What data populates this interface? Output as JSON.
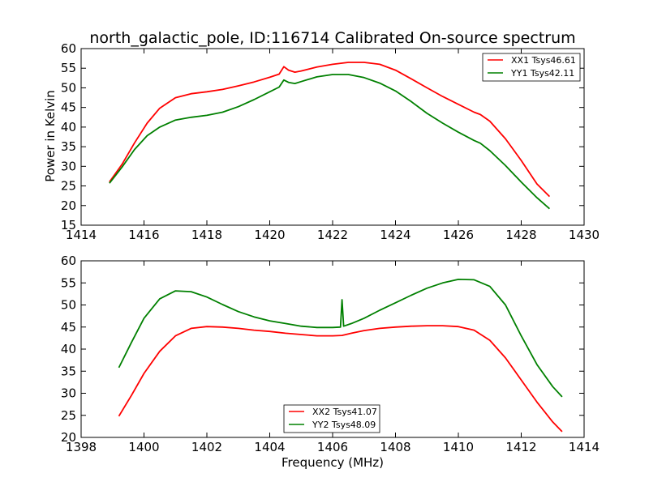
{
  "chart_data": [
    {
      "type": "line",
      "title": "north_galactic_pole, ID:116714 Calibrated On-source spectrum",
      "xlabel": "",
      "ylabel": "Power in Kelvin",
      "xlim": [
        1414,
        1430
      ],
      "ylim": [
        15,
        60
      ],
      "xticks": [
        1414,
        1416,
        1418,
        1420,
        1422,
        1424,
        1426,
        1428,
        1430
      ],
      "yticks": [
        15,
        20,
        25,
        30,
        35,
        40,
        45,
        50,
        55,
        60
      ],
      "grid": false,
      "legend": "top-right",
      "series": [
        {
          "name": "XX1 Tsys46.61",
          "color": "#ff0000",
          "x": [
            1414.9,
            1415.3,
            1415.7,
            1416.1,
            1416.5,
            1417.0,
            1417.5,
            1418.0,
            1418.5,
            1419.0,
            1419.5,
            1420.0,
            1420.3,
            1420.45,
            1420.6,
            1420.8,
            1421.0,
            1421.5,
            1422.0,
            1422.5,
            1423.0,
            1423.5,
            1424.0,
            1424.5,
            1425.0,
            1425.5,
            1426.0,
            1426.5,
            1426.7,
            1427.0,
            1427.5,
            1428.0,
            1428.5,
            1428.9
          ],
          "y": [
            26.0,
            30.5,
            36.0,
            41.0,
            44.8,
            47.5,
            48.5,
            49.0,
            49.6,
            50.5,
            51.5,
            52.7,
            53.5,
            55.4,
            54.5,
            54.0,
            54.3,
            55.3,
            56.0,
            56.5,
            56.5,
            56.0,
            54.5,
            52.3,
            50.0,
            47.8,
            45.8,
            43.8,
            43.2,
            41.5,
            37.0,
            31.5,
            25.5,
            22.3
          ]
        },
        {
          "name": "YY1 Tsys42.11",
          "color": "#008000",
          "x": [
            1414.9,
            1415.3,
            1415.7,
            1416.1,
            1416.5,
            1417.0,
            1417.5,
            1418.0,
            1418.5,
            1419.0,
            1419.5,
            1420.0,
            1420.3,
            1420.45,
            1420.6,
            1420.8,
            1421.0,
            1421.5,
            1422.0,
            1422.5,
            1423.0,
            1423.5,
            1424.0,
            1424.5,
            1425.0,
            1425.5,
            1426.0,
            1426.5,
            1426.7,
            1427.0,
            1427.5,
            1428.0,
            1428.5,
            1428.9
          ],
          "y": [
            25.7,
            29.8,
            34.3,
            37.8,
            40.0,
            41.8,
            42.5,
            43.0,
            43.8,
            45.2,
            47.0,
            49.0,
            50.2,
            52.0,
            51.4,
            51.1,
            51.6,
            52.8,
            53.4,
            53.4,
            52.6,
            51.2,
            49.2,
            46.5,
            43.5,
            41.0,
            38.7,
            36.6,
            35.9,
            34.0,
            30.2,
            26.0,
            22.0,
            19.2
          ]
        }
      ]
    },
    {
      "type": "line",
      "title": "",
      "xlabel": "Frequency (MHz)",
      "ylabel": "",
      "xlim": [
        1398,
        1414
      ],
      "ylim": [
        20,
        60
      ],
      "xticks": [
        1398,
        1400,
        1402,
        1404,
        1406,
        1408,
        1410,
        1412,
        1414
      ],
      "yticks": [
        20,
        25,
        30,
        35,
        40,
        45,
        50,
        55,
        60
      ],
      "grid": false,
      "legend": "bottom-center",
      "series": [
        {
          "name": "XX2 Tsys41.07",
          "color": "#ff0000",
          "x": [
            1399.2,
            1399.6,
            1400.0,
            1400.5,
            1401.0,
            1401.5,
            1402.0,
            1402.5,
            1403.0,
            1403.5,
            1404.0,
            1404.5,
            1405.0,
            1405.5,
            1406.0,
            1406.3,
            1406.6,
            1407.0,
            1407.5,
            1408.0,
            1408.5,
            1409.0,
            1409.5,
            1410.0,
            1410.5,
            1411.0,
            1411.5,
            1412.0,
            1412.5,
            1413.0,
            1413.3
          ],
          "y": [
            24.8,
            29.5,
            34.5,
            39.5,
            43.0,
            44.7,
            45.1,
            45.0,
            44.7,
            44.3,
            44.0,
            43.6,
            43.3,
            43.0,
            43.0,
            43.1,
            43.6,
            44.2,
            44.7,
            45.0,
            45.2,
            45.3,
            45.3,
            45.1,
            44.3,
            42.0,
            38.0,
            33.0,
            28.0,
            23.5,
            21.3
          ]
        },
        {
          "name": "YY2 Tsys48.09",
          "color": "#008000",
          "x": [
            1399.2,
            1399.6,
            1400.0,
            1400.5,
            1401.0,
            1401.5,
            1402.0,
            1402.5,
            1403.0,
            1403.5,
            1404.0,
            1404.5,
            1405.0,
            1405.5,
            1406.0,
            1406.25,
            1406.3,
            1406.35,
            1406.6,
            1407.0,
            1407.5,
            1408.0,
            1408.5,
            1409.0,
            1409.5,
            1410.0,
            1410.5,
            1411.0,
            1411.5,
            1412.0,
            1412.5,
            1413.0,
            1413.3
          ],
          "y": [
            35.8,
            41.5,
            47.0,
            51.4,
            53.2,
            53.0,
            51.8,
            50.1,
            48.5,
            47.3,
            46.4,
            45.8,
            45.2,
            44.9,
            44.9,
            45.0,
            51.2,
            45.2,
            45.8,
            47.0,
            48.8,
            50.5,
            52.2,
            53.8,
            55.0,
            55.8,
            55.7,
            54.2,
            50.0,
            43.0,
            36.5,
            31.5,
            29.2
          ]
        }
      ]
    }
  ]
}
